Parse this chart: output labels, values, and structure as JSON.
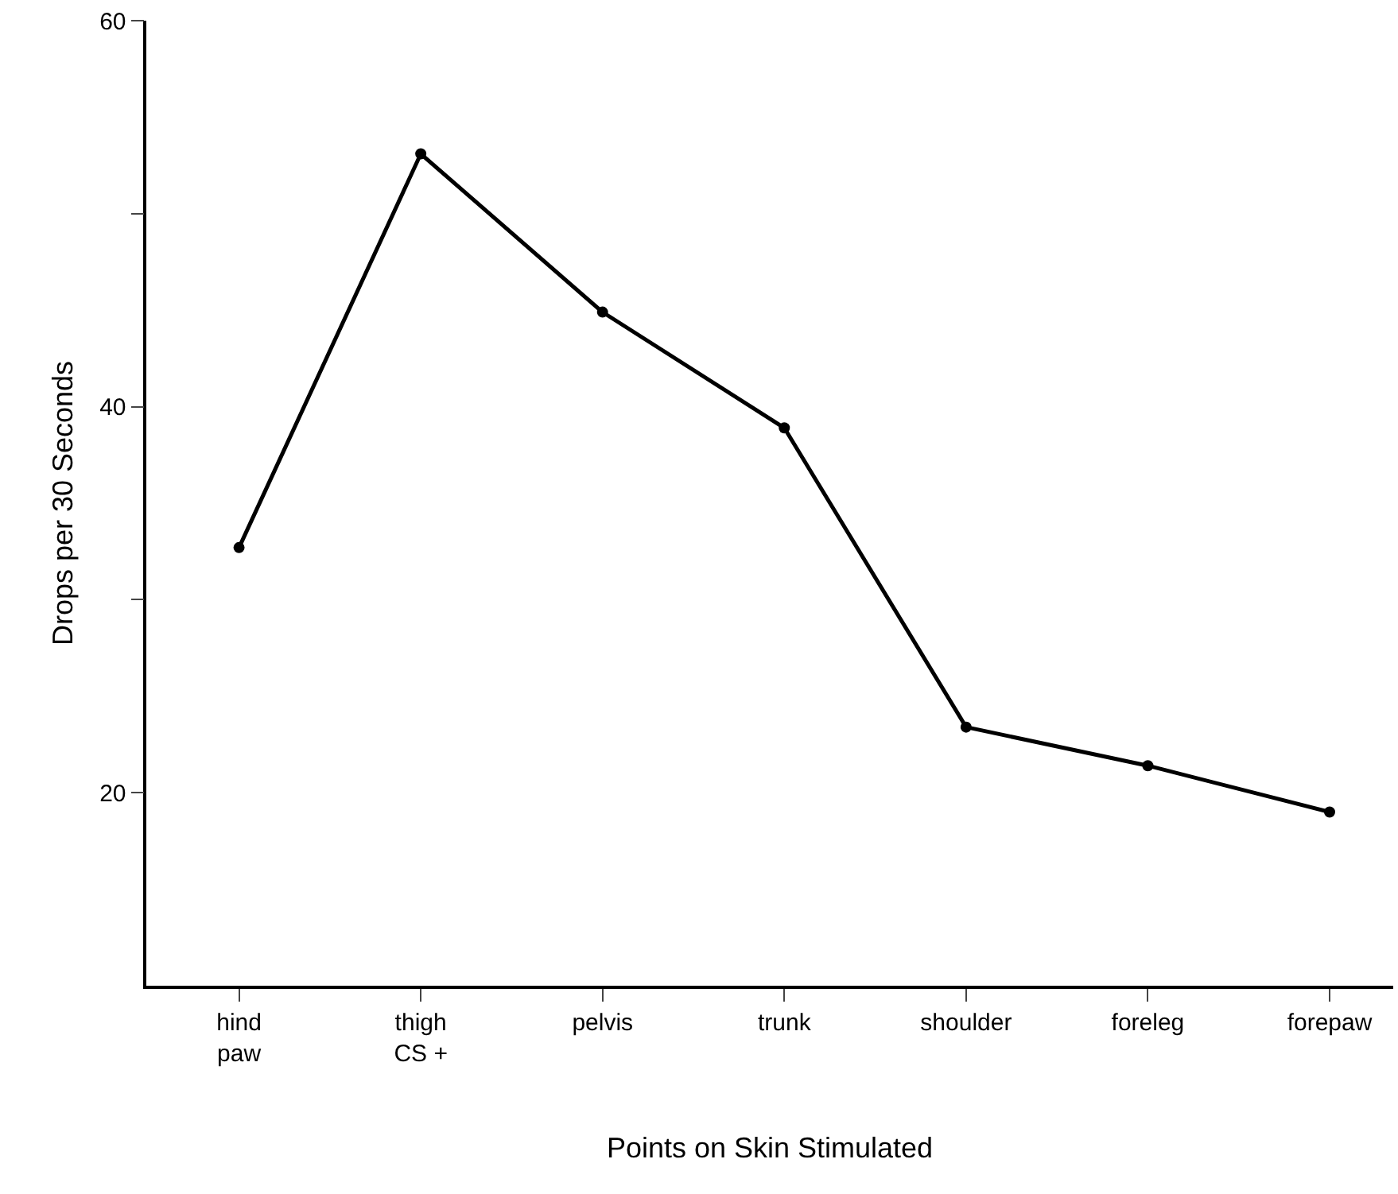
{
  "chart_data": {
    "type": "line",
    "categories": [
      "hind\npaw",
      "thigh\nCS +",
      "pelvis",
      "trunk",
      "shoulder",
      "foreleg",
      "forepaw"
    ],
    "series": [
      {
        "color": "#000000",
        "values": [
          32.7,
          53.1,
          44.9,
          38.9,
          23.4,
          21.4,
          19.0
        ]
      }
    ],
    "xlabel": "Points on Skin Stimulated",
    "ylabel": "Drops per 30 Seconds",
    "ylim": [
      10,
      60
    ],
    "yticks": [
      {
        "value": 20,
        "label": "20"
      },
      {
        "value": 30,
        "label": null
      },
      {
        "value": 40,
        "label": "40"
      },
      {
        "value": 50,
        "label": null
      },
      {
        "value": 60,
        "label": "60"
      }
    ],
    "marker": "circle",
    "line_style": "solid"
  }
}
